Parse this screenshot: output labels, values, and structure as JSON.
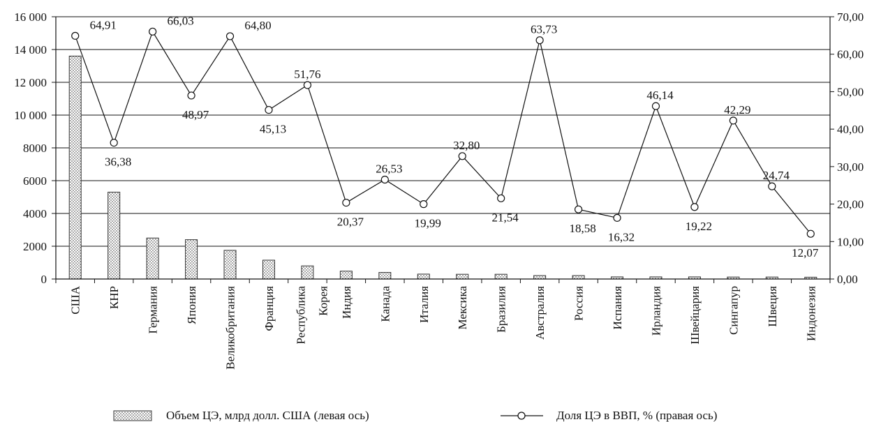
{
  "chart_data": {
    "type": "bar+line",
    "categories": [
      "США",
      "КНР",
      "Германия",
      "Япония",
      "Великобритания",
      "Франция",
      "Республика Корея",
      "Индия",
      "Канада",
      "Италия",
      "Мексика",
      "Бразилия",
      "Австралия",
      "Россия",
      "Испания",
      "Ирландия",
      "Швейцария",
      "Сингапур",
      "Швеция",
      "Индонезия"
    ],
    "category_lines": [
      [
        "США"
      ],
      [
        "КНР"
      ],
      [
        "Германия"
      ],
      [
        "Япония"
      ],
      [
        "Великобритания"
      ],
      [
        "Франция"
      ],
      [
        "Республика",
        "Корея"
      ],
      [
        "Индия"
      ],
      [
        "Канада"
      ],
      [
        "Италия"
      ],
      [
        "Мексика"
      ],
      [
        "Бразилия"
      ],
      [
        "Австралия"
      ],
      [
        "Россия"
      ],
      [
        "Испания"
      ],
      [
        "Ирландия"
      ],
      [
        "Швейцария"
      ],
      [
        "Сингапур"
      ],
      [
        "Швеция"
      ],
      [
        "Индонезия"
      ]
    ],
    "series": [
      {
        "name": "Объем ЦЭ, млрд долл. США (левая ось)",
        "type": "bar",
        "axis": "left",
        "values": [
          13600,
          5300,
          2500,
          2400,
          1750,
          1150,
          800,
          480,
          400,
          300,
          290,
          290,
          210,
          210,
          130,
          130,
          130,
          120,
          120,
          110
        ]
      },
      {
        "name": "Доля ЦЭ в ВВП, % (правая ось)",
        "type": "line",
        "axis": "right",
        "values": [
          64.91,
          36.38,
          66.03,
          48.97,
          64.8,
          45.13,
          51.76,
          20.37,
          26.53,
          19.99,
          32.8,
          21.54,
          63.73,
          18.58,
          16.32,
          46.14,
          19.22,
          42.29,
          24.74,
          12.07
        ],
        "labels": [
          "64,91",
          "36,38",
          "66,03",
          "48,97",
          "64,80",
          "45,13",
          "51,76",
          "20,37",
          "26,53",
          "19,99",
          "32,80",
          "21,54",
          "63,73",
          "18,58",
          "16,32",
          "46,14",
          "19,22",
          "42,29",
          "24,74",
          "12,07"
        ],
        "label_pos": [
          "above",
          "below",
          "above",
          "below",
          "above",
          "below",
          "above",
          "below",
          "above",
          "below",
          "above",
          "below",
          "above",
          "below",
          "below",
          "above",
          "below",
          "above",
          "above",
          "below"
        ]
      }
    ],
    "left_axis": {
      "ylim": [
        0,
        16000
      ],
      "ticks": [
        0,
        2000,
        4000,
        6000,
        8000,
        10000,
        12000,
        14000,
        16000
      ],
      "tick_labels": [
        "0",
        "2000",
        "4000",
        "6000",
        "8000",
        "10 000",
        "12 000",
        "14 000",
        "16 000"
      ]
    },
    "right_axis": {
      "ylim": [
        0,
        70
      ],
      "ticks": [
        0,
        10,
        20,
        30,
        40,
        50,
        60,
        70
      ],
      "tick_labels": [
        "0,00",
        "10,00",
        "20,00",
        "30,00",
        "40,00",
        "50,00",
        "60,00",
        "70,00"
      ]
    },
    "grid": true,
    "legend": "bottom"
  }
}
